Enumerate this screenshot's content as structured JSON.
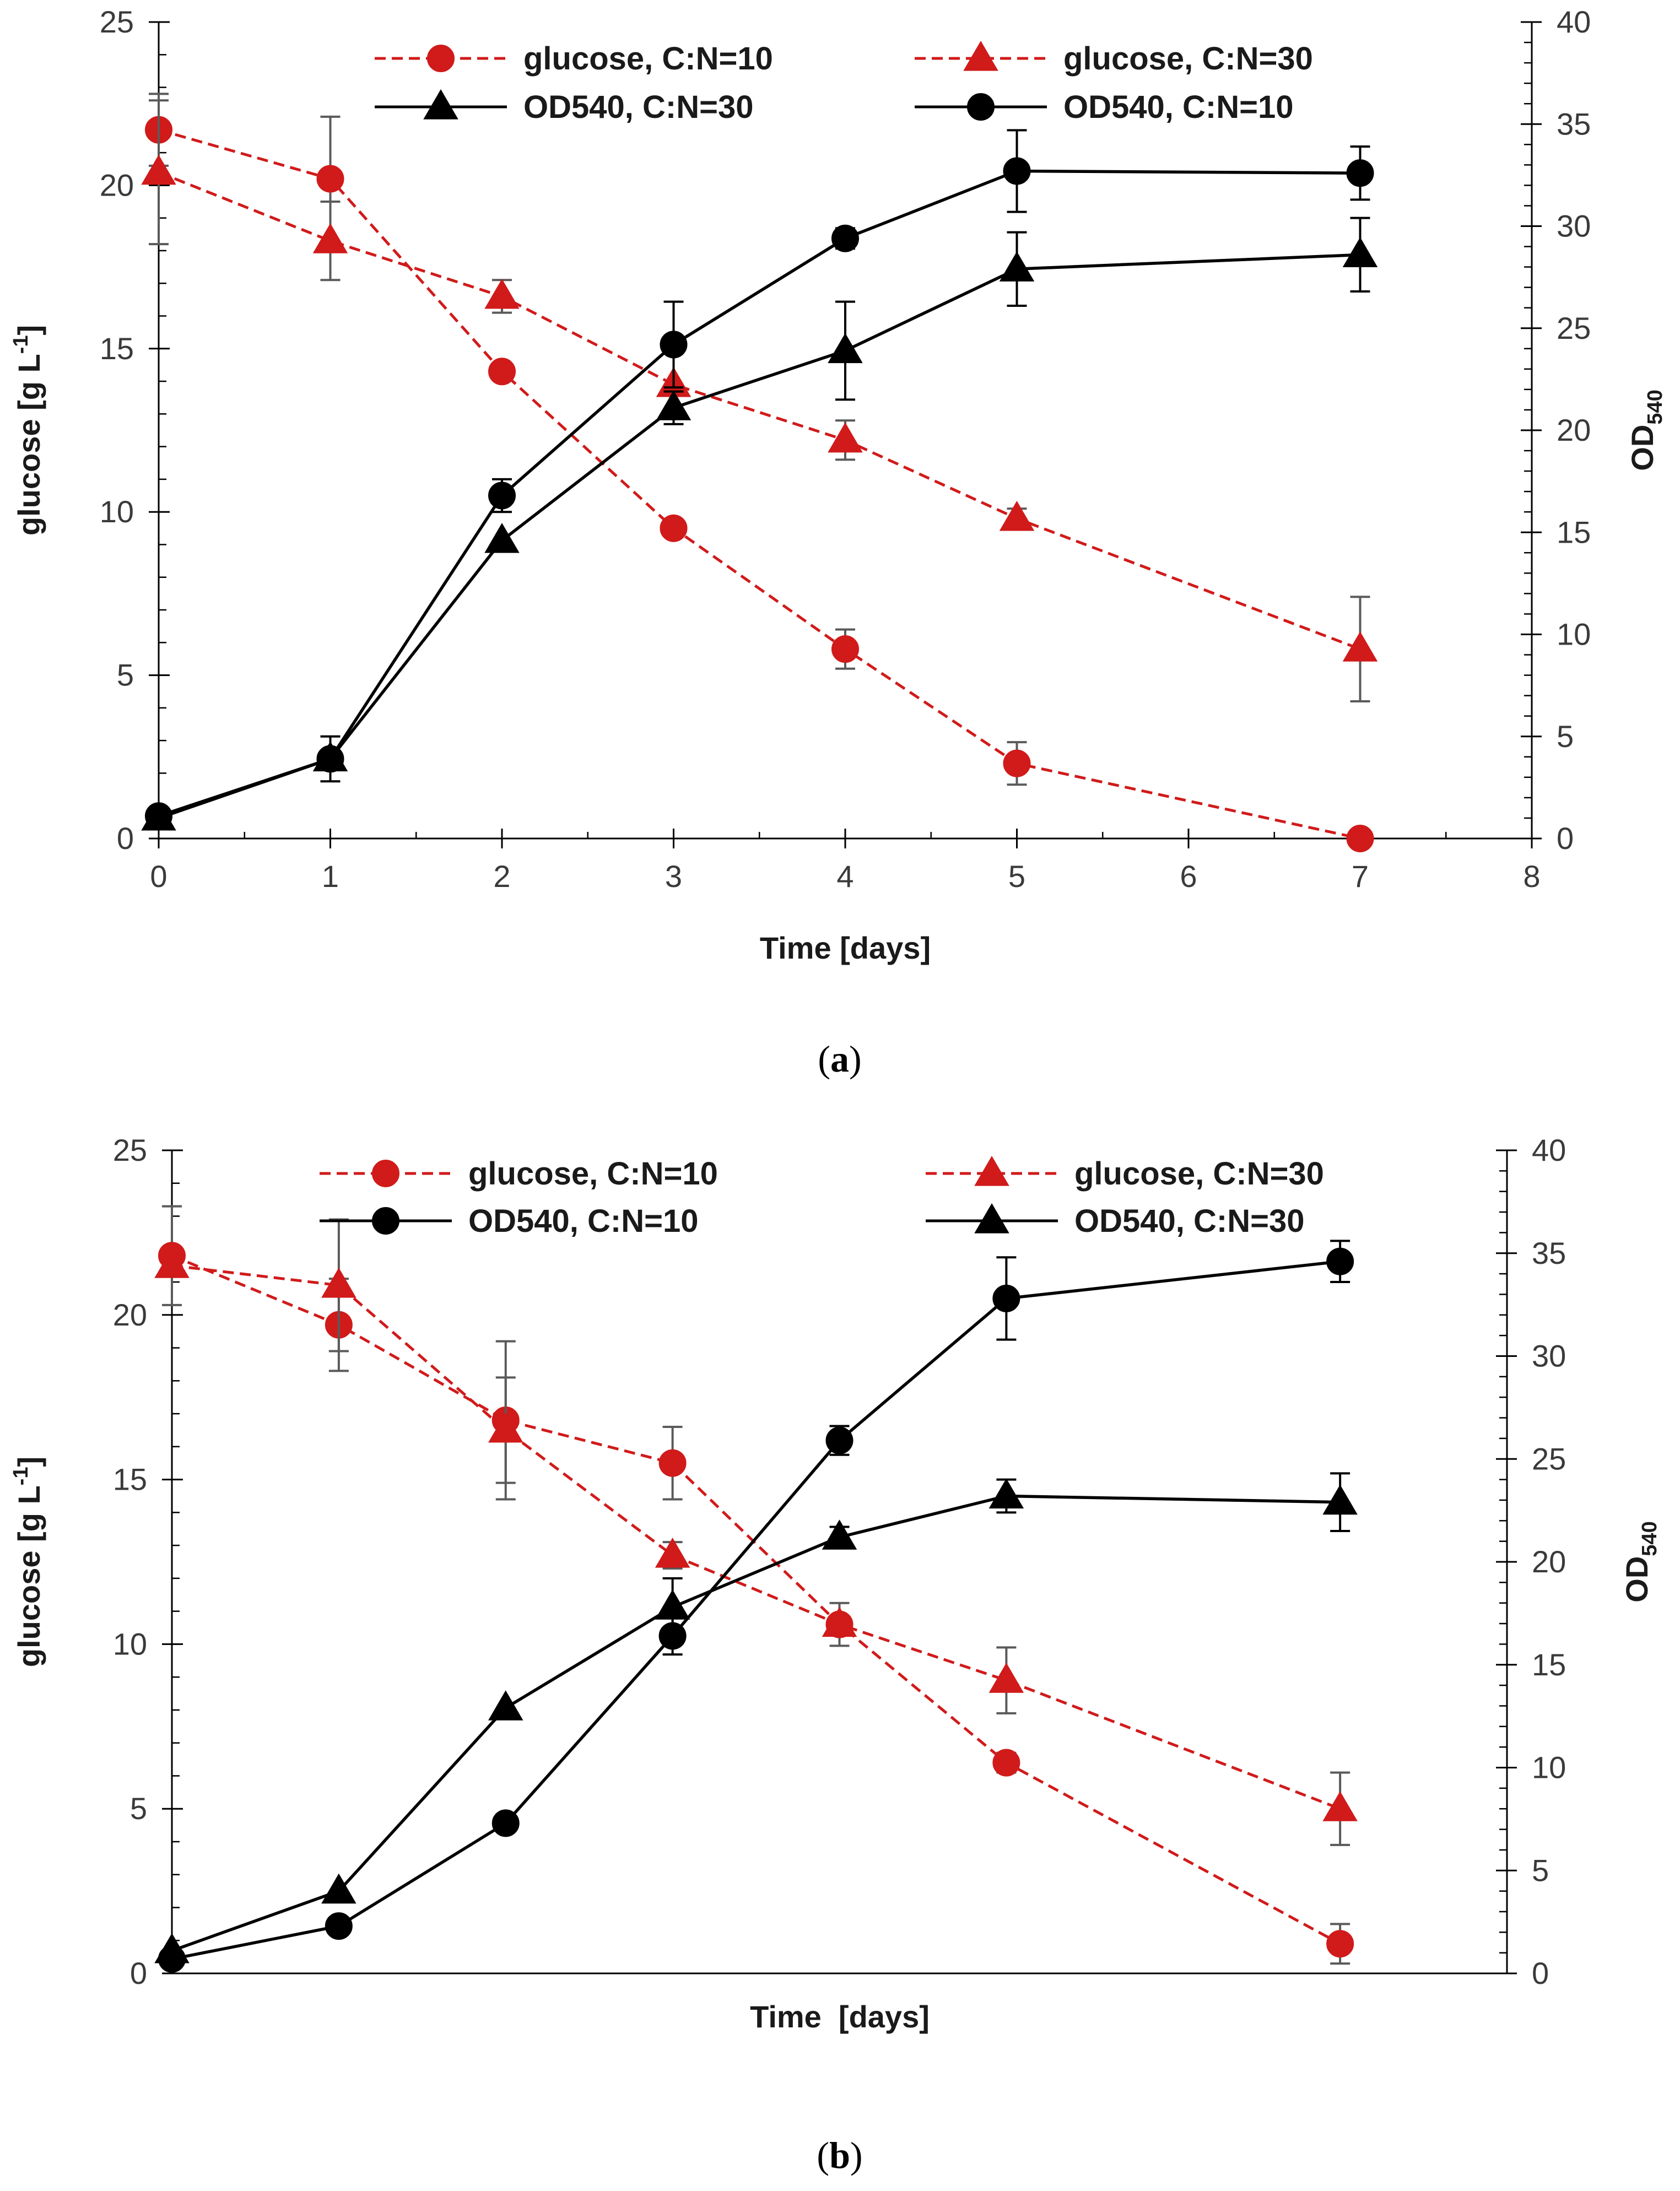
{
  "chart_data": [
    {
      "type": "line",
      "panel_label": "a",
      "x_ticks_visible": true,
      "xlabel": "Time [days]",
      "ylabel_left": "glucose [g L",
      "ylabel_left_sup": "-1",
      "ylabel_left_close": "]",
      "ylabel_right_main": "OD",
      "ylabel_right_sub": "540",
      "xlim": [
        0,
        8
      ],
      "x_ticks": [
        0,
        1,
        2,
        3,
        4,
        5,
        6,
        7,
        8
      ],
      "ylim_left": [
        0,
        25
      ],
      "y_ticks_left": [
        0,
        5,
        10,
        15,
        20,
        25
      ],
      "ylim_right": [
        0,
        40
      ],
      "y_ticks_right": [
        0,
        5,
        10,
        15,
        20,
        25,
        30,
        35,
        40
      ],
      "x_minor_step": 0.5,
      "y_left_minor_step": 1,
      "y_right_minor_step": 1,
      "series": [
        {
          "name": "glucose, C:N=10",
          "axis": "left",
          "style": "dashed",
          "color": "#d11a1a",
          "marker": "circle",
          "x": [
            0,
            1,
            2,
            3,
            4,
            5,
            7
          ],
          "y": [
            21.7,
            20.2,
            14.3,
            9.5,
            5.8,
            2.3,
            0.0
          ],
          "err": [
            1.1,
            1.9,
            0.0,
            0.25,
            0.6,
            0.65,
            0.0
          ]
        },
        {
          "name": "glucose, C:N=30",
          "axis": "left",
          "style": "dashed",
          "color": "#d11a1a",
          "marker": "triangle",
          "x": [
            0,
            1,
            2,
            3,
            4,
            5,
            7
          ],
          "y": [
            20.4,
            18.3,
            16.6,
            13.9,
            12.2,
            9.8,
            5.8
          ],
          "err": [
            2.2,
            1.2,
            0.5,
            0.0,
            0.6,
            0.3,
            1.6
          ]
        },
        {
          "name": "OD540, C:N=30",
          "axis": "right",
          "style": "solid",
          "color": "#000000",
          "marker": "triangle",
          "x": [
            0,
            1,
            2,
            3,
            4,
            5,
            7
          ],
          "y": [
            1.0,
            3.9,
            14.6,
            21.1,
            23.9,
            27.9,
            28.6
          ],
          "err": [
            0.0,
            0.0,
            0.0,
            0.8,
            2.4,
            1.8,
            1.8
          ]
        },
        {
          "name": "OD540, C:N=10",
          "axis": "right",
          "style": "solid",
          "color": "#000000",
          "marker": "circle",
          "x": [
            0,
            1,
            2,
            3,
            4,
            5,
            7
          ],
          "y": [
            1.1,
            3.9,
            16.8,
            24.2,
            29.4,
            32.7,
            32.6
          ],
          "err": [
            0.0,
            1.1,
            0.8,
            2.1,
            0.5,
            2.0,
            1.3
          ]
        }
      ],
      "legend_layout": [
        [
          0,
          1
        ],
        [
          2,
          3
        ]
      ]
    },
    {
      "type": "line",
      "panel_label": "b",
      "x_ticks_visible": false,
      "xlabel": "Time  [days]",
      "ylabel_left": "glucose [g L",
      "ylabel_left_sup": "-1",
      "ylabel_left_close": "]",
      "ylabel_right_main": "OD",
      "ylabel_right_sub": "540",
      "xlim": [
        0,
        8
      ],
      "x_ticks": [],
      "ylim_left": [
        0,
        25
      ],
      "y_ticks_left": [
        0,
        5,
        10,
        15,
        20,
        25
      ],
      "ylim_right": [
        0,
        40
      ],
      "y_ticks_right": [
        0,
        5,
        10,
        15,
        20,
        25,
        30,
        35,
        40
      ],
      "x_minor_step": 0,
      "y_left_minor_step": 1,
      "y_right_minor_step": 1,
      "series": [
        {
          "name": "glucose, C:N=10",
          "axis": "left",
          "style": "dashed",
          "color": "#d11a1a",
          "marker": "circle",
          "x": [
            0,
            1,
            2,
            3,
            4,
            5,
            7
          ],
          "y": [
            21.8,
            19.7,
            16.8,
            15.5,
            10.6,
            6.4,
            0.9
          ],
          "err": [
            1.5,
            1.4,
            2.4,
            1.1,
            0.65,
            0.3,
            0.6
          ]
        },
        {
          "name": "glucose, C:N=30",
          "axis": "left",
          "style": "dashed",
          "color": "#d11a1a",
          "marker": "triangle",
          "x": [
            0,
            1,
            2,
            3,
            4,
            5,
            7
          ],
          "y": [
            21.5,
            20.9,
            16.5,
            12.7,
            10.6,
            8.9,
            5.0
          ],
          "err": [
            0.0,
            2.0,
            1.6,
            0.4,
            0.0,
            1.0,
            1.1
          ]
        },
        {
          "name": "OD540, C:N=10",
          "axis": "right",
          "style": "solid",
          "color": "#000000",
          "marker": "circle",
          "x": [
            0,
            1,
            2,
            3,
            4,
            5,
            7
          ],
          "y": [
            0.7,
            2.3,
            7.3,
            16.4,
            25.9,
            32.8,
            34.6
          ],
          "err": [
            0.0,
            0.0,
            0.0,
            0.9,
            0.7,
            2.0,
            1.0
          ]
        },
        {
          "name": "OD540, C:N=30",
          "axis": "right",
          "style": "solid",
          "color": "#000000",
          "marker": "triangle",
          "x": [
            0,
            1,
            2,
            3,
            4,
            5,
            7
          ],
          "y": [
            1.1,
            4.0,
            12.9,
            17.8,
            21.2,
            23.2,
            22.9
          ],
          "err": [
            0.0,
            0.0,
            0.0,
            1.4,
            0.5,
            0.8,
            1.4
          ]
        }
      ],
      "legend_layout": [
        [
          0,
          1
        ],
        [
          2,
          3
        ]
      ]
    }
  ]
}
